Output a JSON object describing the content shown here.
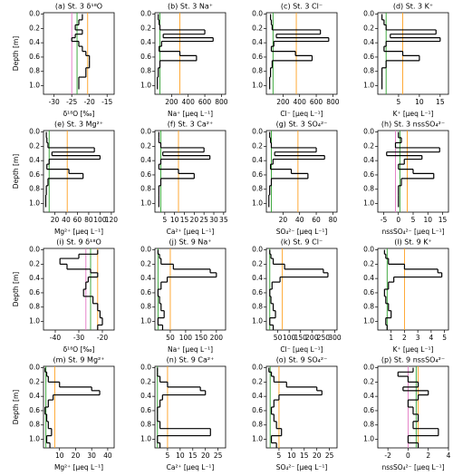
{
  "depth_axis": {
    "label": "Depth [m]",
    "ylim": [
      1.12,
      -0.02
    ],
    "yticks": [
      {
        "value": 0,
        "label": "0.0"
      },
      {
        "value": 0.2,
        "label": "0.2"
      },
      {
        "value": 0.4,
        "label": "0.4"
      },
      {
        "value": 0.6,
        "label": "0.6"
      },
      {
        "value": 0.8,
        "label": "0.8"
      },
      {
        "value": 1,
        "label": "1.0"
      }
    ]
  },
  "chart_data": [
    {
      "type": "step",
      "title": "(a) St. 3 δ¹⁸O",
      "xlabel": "δ¹⁸O [‰]",
      "xlim": [
        -33,
        -13
      ],
      "xticks": [
        -30,
        -25,
        -20,
        -15
      ],
      "depth_edges": [
        0,
        0.08,
        0.15,
        0.22,
        0.28,
        0.33,
        0.38,
        0.45,
        0.52,
        0.58,
        0.65,
        0.75,
        0.88,
        1.05
      ],
      "values": [
        -22,
        -23,
        -24,
        -22,
        -24,
        -25,
        -23,
        -22,
        -21,
        -20,
        -20,
        -21,
        -23
      ],
      "color": "#000000",
      "ref_lines": [
        {
          "color": "#e377c2",
          "value": -25
        },
        {
          "color": "#2ca02c",
          "value": -23.5
        },
        {
          "color": "#ffa020",
          "value": -20.5
        }
      ]
    },
    {
      "type": "step",
      "title": "(b) St. 3 Na⁺",
      "xlabel": "Na⁺ [μeq L⁻¹]",
      "xlim": [
        0,
        850
      ],
      "xticks": [
        200,
        400,
        600,
        800
      ],
      "depth_edges": [
        0,
        0.08,
        0.15,
        0.22,
        0.28,
        0.33,
        0.38,
        0.45,
        0.52,
        0.58,
        0.65,
        0.75,
        0.88,
        1.05
      ],
      "values": [
        40,
        50,
        60,
        600,
        100,
        700,
        80,
        50,
        300,
        500,
        60,
        40,
        30
      ],
      "color": "#000000",
      "ref_lines": [
        {
          "color": "#2ca02c",
          "value": 60
        },
        {
          "color": "#ffa020",
          "value": 300
        }
      ]
    },
    {
      "type": "step",
      "title": "(c) St. 3 Cl⁻",
      "xlabel": "Cl⁻ [μeq L⁻¹]",
      "xlim": [
        0,
        850
      ],
      "xticks": [
        200,
        400,
        600,
        800
      ],
      "depth_edges": [
        0,
        0.08,
        0.15,
        0.22,
        0.28,
        0.33,
        0.38,
        0.45,
        0.52,
        0.58,
        0.65,
        0.75,
        0.88,
        1.05
      ],
      "values": [
        50,
        60,
        70,
        650,
        120,
        750,
        90,
        60,
        350,
        550,
        70,
        50,
        40
      ],
      "color": "#000000",
      "ref_lines": [
        {
          "color": "#2ca02c",
          "value": 80
        },
        {
          "color": "#ffa020",
          "value": 360
        }
      ]
    },
    {
      "type": "step",
      "title": "(d) St. 3 K⁺",
      "xlabel": "K⁺ [μeq L⁻¹]",
      "xlim": [
        0,
        17
      ],
      "xticks": [
        5,
        10,
        15
      ],
      "depth_edges": [
        0,
        0.08,
        0.15,
        0.22,
        0.28,
        0.33,
        0.38,
        0.45,
        0.52,
        0.58,
        0.65,
        0.75,
        0.88,
        1.05
      ],
      "values": [
        1,
        1.5,
        2,
        14,
        3,
        15,
        2,
        1.5,
        6,
        10,
        2,
        1,
        1
      ],
      "color": "#000000",
      "ref_lines": [
        {
          "color": "#2ca02c",
          "value": 2
        },
        {
          "color": "#ffa020",
          "value": 6
        }
      ]
    },
    {
      "type": "step",
      "title": "(e) St. 3 Mg²⁺",
      "xlabel": "Mg²⁺ [μeq L⁻¹]",
      "xlim": [
        0,
        125
      ],
      "xticks": [
        20,
        40,
        60,
        80,
        100,
        120
      ],
      "depth_edges": [
        0,
        0.08,
        0.15,
        0.22,
        0.28,
        0.33,
        0.38,
        0.45,
        0.52,
        0.58,
        0.65,
        0.75,
        0.88,
        1.05
      ],
      "values": [
        5,
        6,
        8,
        90,
        15,
        100,
        10,
        6,
        45,
        70,
        8,
        5,
        4
      ],
      "color": "#000000",
      "ref_lines": [
        {
          "color": "#2ca02c",
          "value": 10
        },
        {
          "color": "#ffa020",
          "value": 42
        }
      ]
    },
    {
      "type": "step",
      "title": "(f) St. 3 Ca²⁺",
      "xlabel": "Ca²⁺ [μeq L⁻¹]",
      "xlim": [
        0,
        36
      ],
      "xticks": [
        5,
        10,
        15,
        20,
        25,
        30,
        35
      ],
      "depth_edges": [
        0,
        0.08,
        0.15,
        0.22,
        0.28,
        0.33,
        0.38,
        0.45,
        0.52,
        0.58,
        0.65,
        0.75,
        0.88,
        1.05
      ],
      "values": [
        2,
        2,
        3,
        25,
        4,
        28,
        3,
        2,
        12,
        20,
        3,
        2,
        2
      ],
      "color": "#000000",
      "ref_lines": [
        {
          "color": "#2ca02c",
          "value": 3
        },
        {
          "color": "#ffa020",
          "value": 12
        }
      ]
    },
    {
      "type": "step",
      "title": "(g) St. 3 SO₄²⁻",
      "xlabel": "SO₄²⁻ [μeq L⁻¹]",
      "xlim": [
        0,
        85
      ],
      "xticks": [
        20,
        40,
        60,
        80
      ],
      "depth_edges": [
        0,
        0.08,
        0.15,
        0.22,
        0.28,
        0.33,
        0.38,
        0.45,
        0.52,
        0.58,
        0.65,
        0.75,
        0.88,
        1.05
      ],
      "values": [
        4,
        5,
        6,
        60,
        10,
        70,
        8,
        5,
        30,
        50,
        6,
        4,
        3
      ],
      "color": "#000000",
      "ref_lines": [
        {
          "color": "#2ca02c",
          "value": 6
        },
        {
          "color": "#ffa020",
          "value": 38
        }
      ]
    },
    {
      "type": "step",
      "title": "(h) St. 3 nssSO₄²⁻",
      "xlabel": "nssSO₄²⁻ [μeq L⁻¹]",
      "xlim": [
        -7,
        17
      ],
      "xticks": [
        -5,
        0,
        5,
        10,
        15
      ],
      "depth_edges": [
        0,
        0.08,
        0.15,
        0.22,
        0.28,
        0.33,
        0.38,
        0.45,
        0.52,
        0.58,
        0.65,
        0.75,
        0.88,
        1.05
      ],
      "values": [
        0,
        1,
        -1,
        14,
        -4,
        8,
        2,
        0,
        5,
        12,
        1,
        0,
        0
      ],
      "color": "#000000",
      "ref_lines": [
        {
          "color": "#e377c2",
          "value": -1
        },
        {
          "color": "#2ca02c",
          "value": 0.5
        },
        {
          "color": "#ffa020",
          "value": 3
        }
      ]
    },
    {
      "type": "step",
      "title": "(i) St. 9 δ¹⁸O",
      "xlabel": "δ¹⁸O [‰]",
      "xlim": [
        -45,
        -15
      ],
      "xticks": [
        -40,
        -30,
        -20
      ],
      "depth_edges": [
        0,
        0.06,
        0.12,
        0.2,
        0.27,
        0.32,
        0.38,
        0.45,
        0.55,
        0.65,
        0.75,
        0.85,
        0.95,
        1.05,
        1.12
      ],
      "values": [
        -22,
        -30,
        -38,
        -35,
        -25,
        -22,
        -26,
        -27,
        -28,
        -24,
        -22,
        -21,
        -20,
        -22
      ],
      "color": "#000000",
      "ref_lines": [
        {
          "color": "#e377c2",
          "value": -27
        },
        {
          "color": "#2ca02c",
          "value": -25
        },
        {
          "color": "#ffa020",
          "value": -22
        }
      ]
    },
    {
      "type": "step",
      "title": "(j) St. 9 Na⁺",
      "xlabel": "Na⁺ [μeq L⁻¹]",
      "xlim": [
        0,
        230
      ],
      "xticks": [
        50,
        100,
        150,
        200
      ],
      "depth_edges": [
        0,
        0.06,
        0.12,
        0.2,
        0.27,
        0.32,
        0.38,
        0.45,
        0.55,
        0.65,
        0.75,
        0.85,
        0.95,
        1.05,
        1.12
      ],
      "values": [
        10,
        15,
        20,
        60,
        180,
        200,
        40,
        20,
        10,
        15,
        20,
        30,
        10,
        25
      ],
      "color": "#000000",
      "ref_lines": [
        {
          "color": "#2ca02c",
          "value": 10
        },
        {
          "color": "#ffa020",
          "value": 50
        }
      ]
    },
    {
      "type": "step",
      "title": "(k) St. 9 Cl⁻",
      "xlabel": "Cl⁻ [μeq L⁻¹]",
      "xlim": [
        0,
        310
      ],
      "xticks": [
        50,
        100,
        150,
        200,
        250,
        300
      ],
      "depth_edges": [
        0,
        0.06,
        0.12,
        0.2,
        0.27,
        0.32,
        0.38,
        0.45,
        0.55,
        0.65,
        0.75,
        0.85,
        0.95,
        1.05,
        1.12
      ],
      "values": [
        15,
        20,
        30,
        80,
        250,
        270,
        60,
        25,
        15,
        20,
        30,
        40,
        15,
        30
      ],
      "color": "#000000",
      "ref_lines": [
        {
          "color": "#2ca02c",
          "value": 15
        },
        {
          "color": "#ffa020",
          "value": 70
        }
      ]
    },
    {
      "type": "step",
      "title": "(l) St. 9 K⁺",
      "xlabel": "K⁺ [μeq L⁻¹]",
      "xlim": [
        0,
        5.3
      ],
      "xticks": [
        1,
        2,
        3,
        4,
        5
      ],
      "depth_edges": [
        0,
        0.06,
        0.12,
        0.2,
        0.27,
        0.32,
        0.38,
        0.45,
        0.55,
        0.65,
        0.75,
        0.85,
        0.95,
        1.05,
        1.12
      ],
      "values": [
        0.5,
        0.6,
        0.8,
        2,
        4.5,
        4.8,
        1.2,
        0.8,
        0.5,
        0.6,
        0.8,
        1,
        0.6,
        0.7
      ],
      "color": "#000000",
      "ref_lines": [
        {
          "color": "#2ca02c",
          "value": 0.7
        },
        {
          "color": "#ffa020",
          "value": 2
        }
      ]
    },
    {
      "type": "step",
      "title": "(m) St. 9 Mg²⁺",
      "xlabel": "Mg²⁺ [μeq L⁻¹]",
      "xlim": [
        0,
        44
      ],
      "xticks": [
        10,
        20,
        30,
        40
      ],
      "depth_edges": [
        0,
        0.06,
        0.12,
        0.2,
        0.27,
        0.32,
        0.38,
        0.45,
        0.55,
        0.65,
        0.75,
        0.85,
        0.95,
        1.05,
        1.12
      ],
      "values": [
        1,
        2,
        3,
        10,
        30,
        35,
        6,
        3,
        1,
        2,
        3,
        5,
        2,
        4
      ],
      "color": "#000000",
      "ref_lines": [
        {
          "color": "#2ca02c",
          "value": 1.5
        },
        {
          "color": "#ffa020",
          "value": 7
        }
      ]
    },
    {
      "type": "step",
      "title": "(n) St. 9 Ca²⁺",
      "xlabel": "Ca²⁺ [μeq L⁻¹]",
      "xlim": [
        0,
        28
      ],
      "xticks": [
        5,
        10,
        15,
        20,
        25
      ],
      "depth_edges": [
        0,
        0.06,
        0.12,
        0.2,
        0.27,
        0.32,
        0.38,
        0.45,
        0.55,
        0.65,
        0.75,
        0.85,
        0.95,
        1.05,
        1.12
      ],
      "values": [
        1,
        1,
        2,
        5,
        18,
        20,
        3,
        2,
        1,
        1,
        2,
        22,
        1,
        2
      ],
      "color": "#000000",
      "ref_lines": [
        {
          "color": "#2ca02c",
          "value": 1
        },
        {
          "color": "#ffa020",
          "value": 5
        }
      ]
    },
    {
      "type": "step",
      "title": "(o) St. 9 SO₄²⁻",
      "xlabel": "SO₄²⁻ [μeq L⁻¹]",
      "xlim": [
        0,
        28
      ],
      "xticks": [
        5,
        10,
        15,
        20,
        25
      ],
      "depth_edges": [
        0,
        0.06,
        0.12,
        0.2,
        0.27,
        0.32,
        0.38,
        0.45,
        0.55,
        0.65,
        0.75,
        0.85,
        0.95,
        1.05,
        1.12
      ],
      "values": [
        1,
        2,
        3,
        8,
        20,
        22,
        5,
        3,
        2,
        3,
        4,
        6,
        2,
        4
      ],
      "color": "#000000",
      "ref_lines": [
        {
          "color": "#2ca02c",
          "value": 1.5
        },
        {
          "color": "#ffa020",
          "value": 5
        }
      ]
    },
    {
      "type": "step",
      "title": "(p) St. 9 nssSO₄²⁻",
      "xlabel": "nssSO₄²⁻ [μeq L⁻¹]",
      "xlim": [
        -3,
        4
      ],
      "xticks": [
        -2,
        0,
        2,
        4
      ],
      "depth_edges": [
        0,
        0.06,
        0.12,
        0.2,
        0.27,
        0.32,
        0.38,
        0.45,
        0.55,
        0.65,
        0.75,
        0.85,
        0.95,
        1.05,
        1.12
      ],
      "values": [
        0.5,
        -1,
        0,
        1,
        -0.5,
        2,
        1,
        0,
        0.5,
        1,
        0.5,
        3,
        0,
        1
      ],
      "color": "#000000",
      "ref_lines": [
        {
          "color": "#e377c2",
          "value": 0
        },
        {
          "color": "#2ca02c",
          "value": 0.8
        },
        {
          "color": "#ffa020",
          "value": 1
        }
      ]
    }
  ]
}
